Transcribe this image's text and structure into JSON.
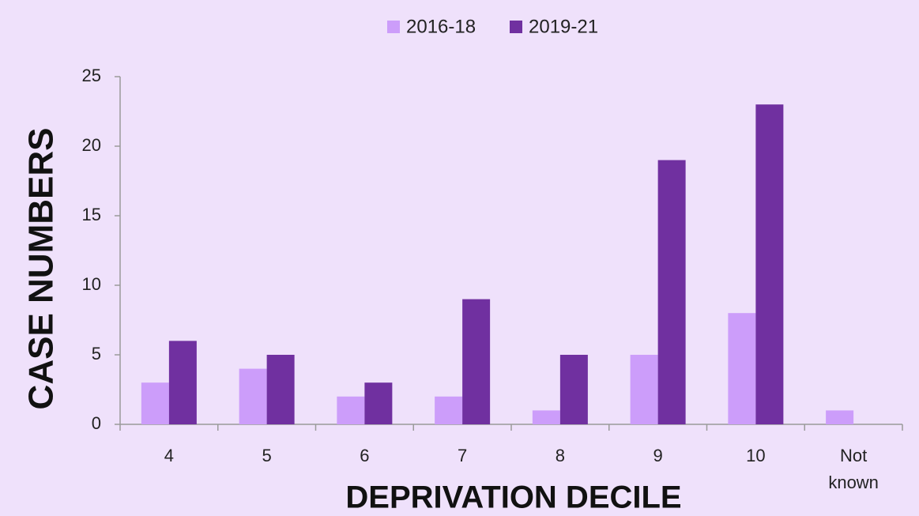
{
  "chart_data": {
    "type": "bar",
    "x_label": "DEPRIVATION DECILE",
    "y_label": "CASE NUMBERS",
    "categories": [
      "4",
      "5",
      "6",
      "7",
      "8",
      "9",
      "10",
      "Not known"
    ],
    "series": [
      {
        "name": "2016-18",
        "color": "#cc9dfa",
        "values": [
          3,
          4,
          2,
          2,
          1,
          5,
          8,
          1
        ]
      },
      {
        "name": "2019-21",
        "color": "#7030a0",
        "values": [
          6,
          5,
          3,
          9,
          5,
          19,
          23,
          null
        ]
      }
    ],
    "ylim": [
      0,
      25
    ],
    "yticks": [
      0,
      5,
      10,
      15,
      20,
      25
    ],
    "grid": false,
    "legend": "top"
  }
}
